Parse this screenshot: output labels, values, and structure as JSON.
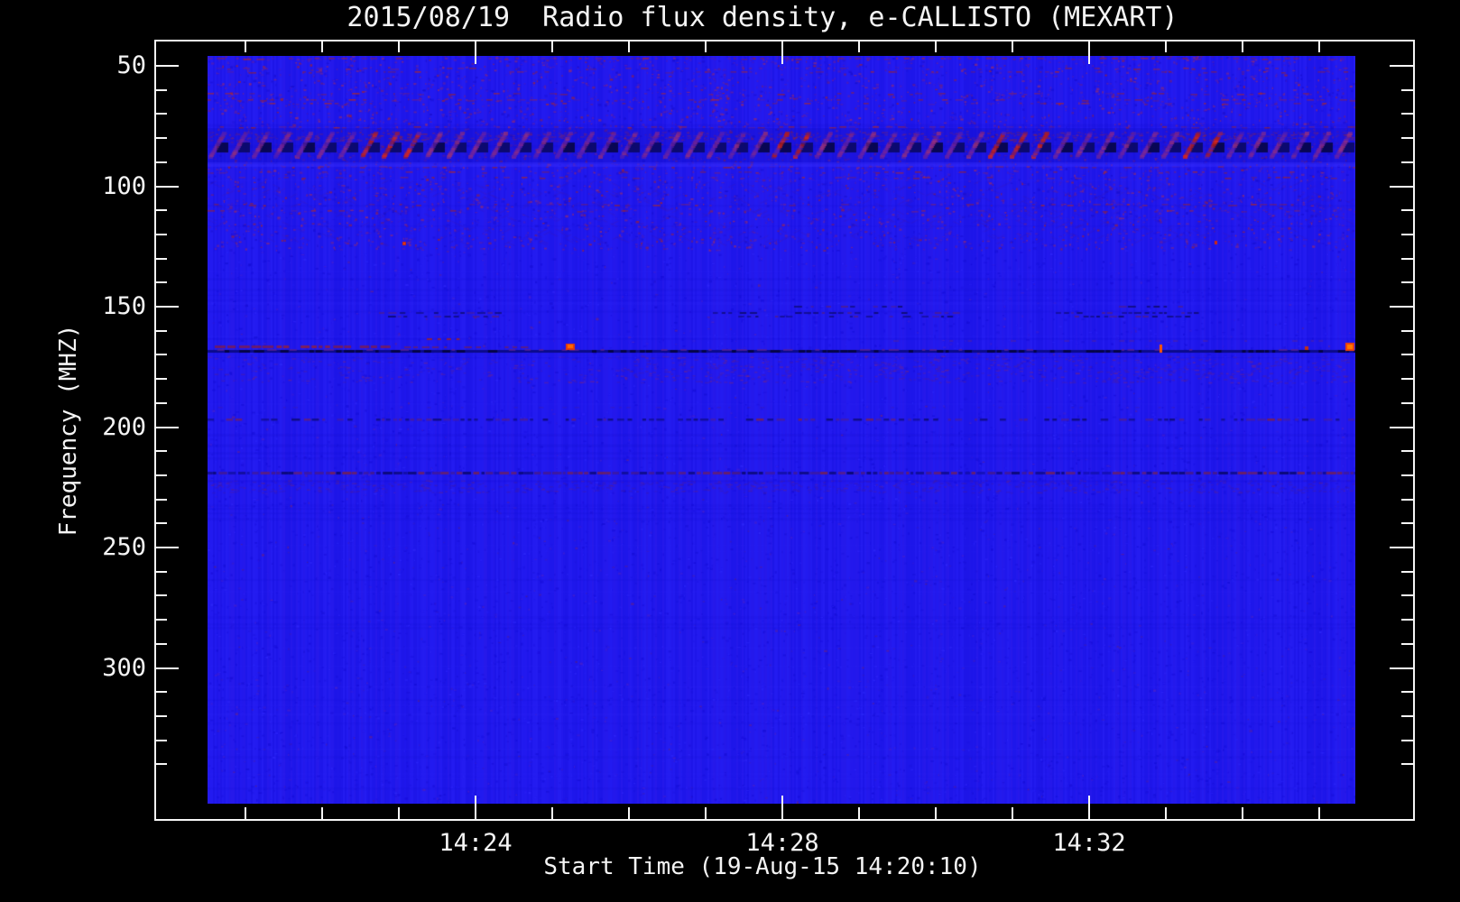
{
  "chart_data": {
    "type": "heatmap",
    "title": "2015/08/19  Radio flux density, e-CALLISTO (MEXART)",
    "xlabel": "Start Time (19-Aug-15 14:20:10)",
    "ylabel": "Frequency (MHZ)",
    "x_tick_labels": [
      "14:24",
      "14:28",
      "14:32"
    ],
    "x_minor_tick_interval": "1 minute",
    "y_tick_labels": [
      "50",
      "100",
      "150",
      "200",
      "250",
      "300"
    ],
    "y_ticks_mhz": [
      50,
      100,
      150,
      200,
      250,
      300
    ],
    "y_minor_step_mhz": 10,
    "ylim_mhz": [
      46,
      356
    ],
    "y_axis_direction": "frequency increases downward",
    "start_time": "14:20:10",
    "date": "19-Aug-15",
    "instrument": "e-CALLISTO (MEXART)",
    "grid": "off",
    "legend": "none",
    "colors": {
      "figure_background": "#000000",
      "axis_and_text": "#f6f6f6",
      "base_blue": "#2018ee",
      "dark_interference": "#0a0860",
      "purple_speckle": "#6f2398",
      "red_interference": "#c41818",
      "hot_spot_orange": "#ff6a00"
    },
    "features": [
      {
        "name": "mottled-noise-region",
        "freq_mhz": "46-110",
        "appearance": "purple/red speckle rows over blue background"
      },
      {
        "name": "broadband-interference-band",
        "freq_mhz": "80-90",
        "appearance": "alternating dark navy blocks with red/purple diagonal bursts across full time range"
      },
      {
        "name": "isolated-red-points",
        "freq_mhz": "125",
        "times": [
          "~14:22:45",
          "~14:33:20"
        ],
        "appearance": "small bright red dots"
      },
      {
        "name": "rfi-line",
        "freq_mhz": "165",
        "appearance": "continuous dark line with maroon dashes on left and bright orange spots near 14:25, 14:32:50 and right edge"
      },
      {
        "name": "rfi-line",
        "freq_mhz": "197",
        "appearance": "dense dashed dark/purple line"
      },
      {
        "name": "rfi-line",
        "freq_mhz": "222",
        "appearance": "dense dashed dark/purple/red line with speckle below"
      },
      {
        "name": "quiet-region",
        "freq_mhz": "230-356",
        "appearance": "nearly uniform blue with faint vertical streaking"
      }
    ]
  }
}
